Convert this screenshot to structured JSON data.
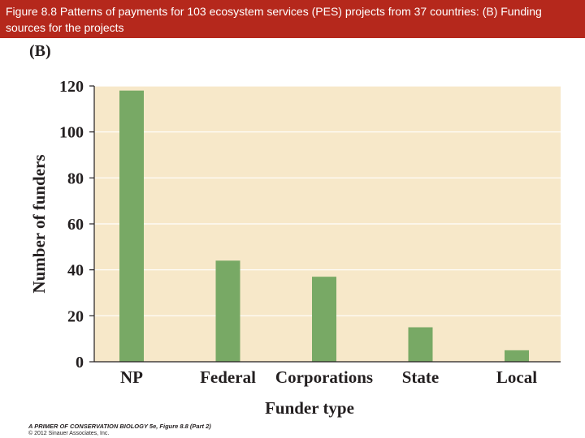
{
  "header": {
    "caption": "Figure 8.8  Patterns of payments for 103 ecosystem services (PES) projects from 37 countries: (B) Funding sources for the projects"
  },
  "panel_label": "(B)",
  "colors": {
    "header_bg": "#b5281c",
    "plot_bg": "#f7e8c9",
    "bar": "#78a965",
    "grid": "#ffffff",
    "text": "#231f20"
  },
  "chart_data": {
    "type": "bar",
    "categories": [
      "NP",
      "Federal",
      "Corporations",
      "State",
      "Local"
    ],
    "values": [
      118,
      44,
      37,
      15,
      5
    ],
    "xlabel": "Funder type",
    "ylabel": "Number of funders",
    "ylim": [
      0,
      120
    ],
    "yticks": [
      0,
      20,
      40,
      60,
      80,
      100,
      120
    ],
    "grid": true
  },
  "credit": {
    "line1": "A PRIMER OF CONSERVATION BIOLOGY 5e, Figure 8.8 (Part 2)",
    "line2": "© 2012 Sinauer Associates, Inc."
  }
}
